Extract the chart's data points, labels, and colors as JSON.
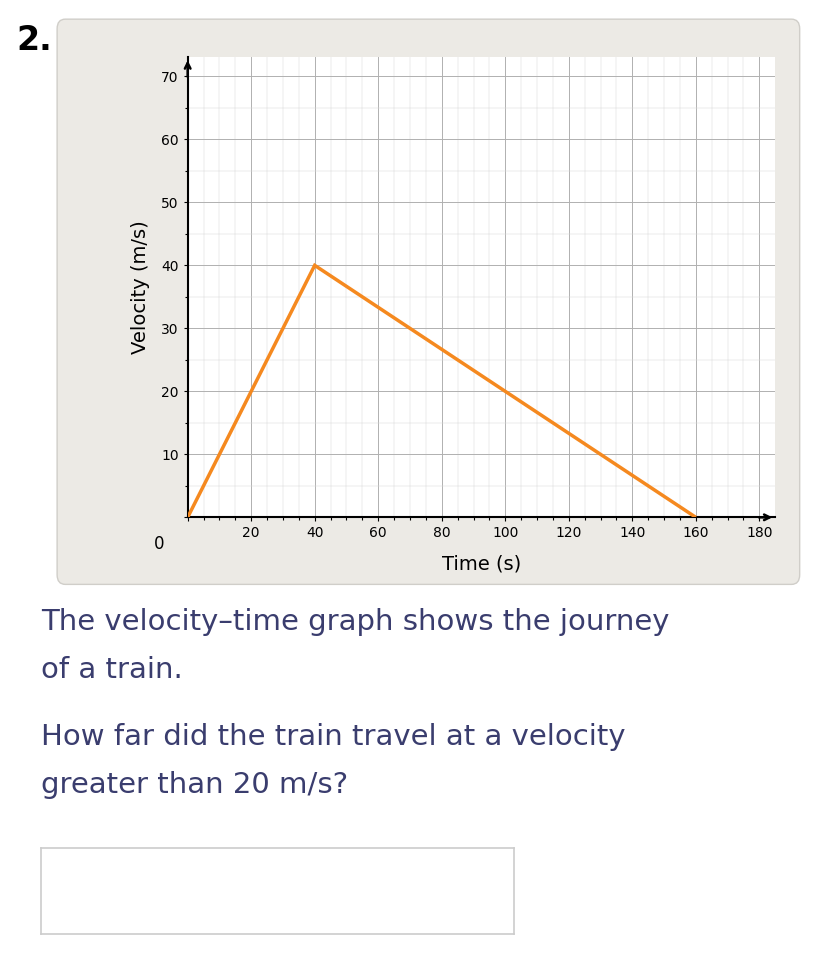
{
  "line_x": [
    0,
    40,
    160
  ],
  "line_y": [
    0,
    40,
    0
  ],
  "xlabel": "Time (s)",
  "ylabel": "Velocity (m/s)",
  "xlim": [
    0,
    185
  ],
  "ylim": [
    0,
    73
  ],
  "xticks": [
    0,
    20,
    40,
    60,
    80,
    100,
    120,
    140,
    160,
    180
  ],
  "yticks": [
    0,
    10,
    20,
    30,
    40,
    50,
    60,
    70
  ],
  "line_color": "#F5891F",
  "line_width": 2.5,
  "grid_major_color": "#b0b0b0",
  "grid_minor_color": "#d8d8d8",
  "panel_bg_color": "#ebebе6",
  "plot_bg_color": "#ffffff",
  "fig_bg_color": "#ffffff",
  "question_number": "2.",
  "text1": "The velocity–time graph shows the journey",
  "text2": "of a train.",
  "text3": "How far did the train travel at a velocity",
  "text4": "greater than 20 m/s?",
  "answer_box_color": "#ffffff",
  "answer_box_edge": "#cccccc",
  "axis_fontsize": 13,
  "tick_fontsize": 12,
  "text_fontsize": 21,
  "question_num_fontsize": 24,
  "text_color": "#3a3d6e",
  "qnum_color": "#000000"
}
